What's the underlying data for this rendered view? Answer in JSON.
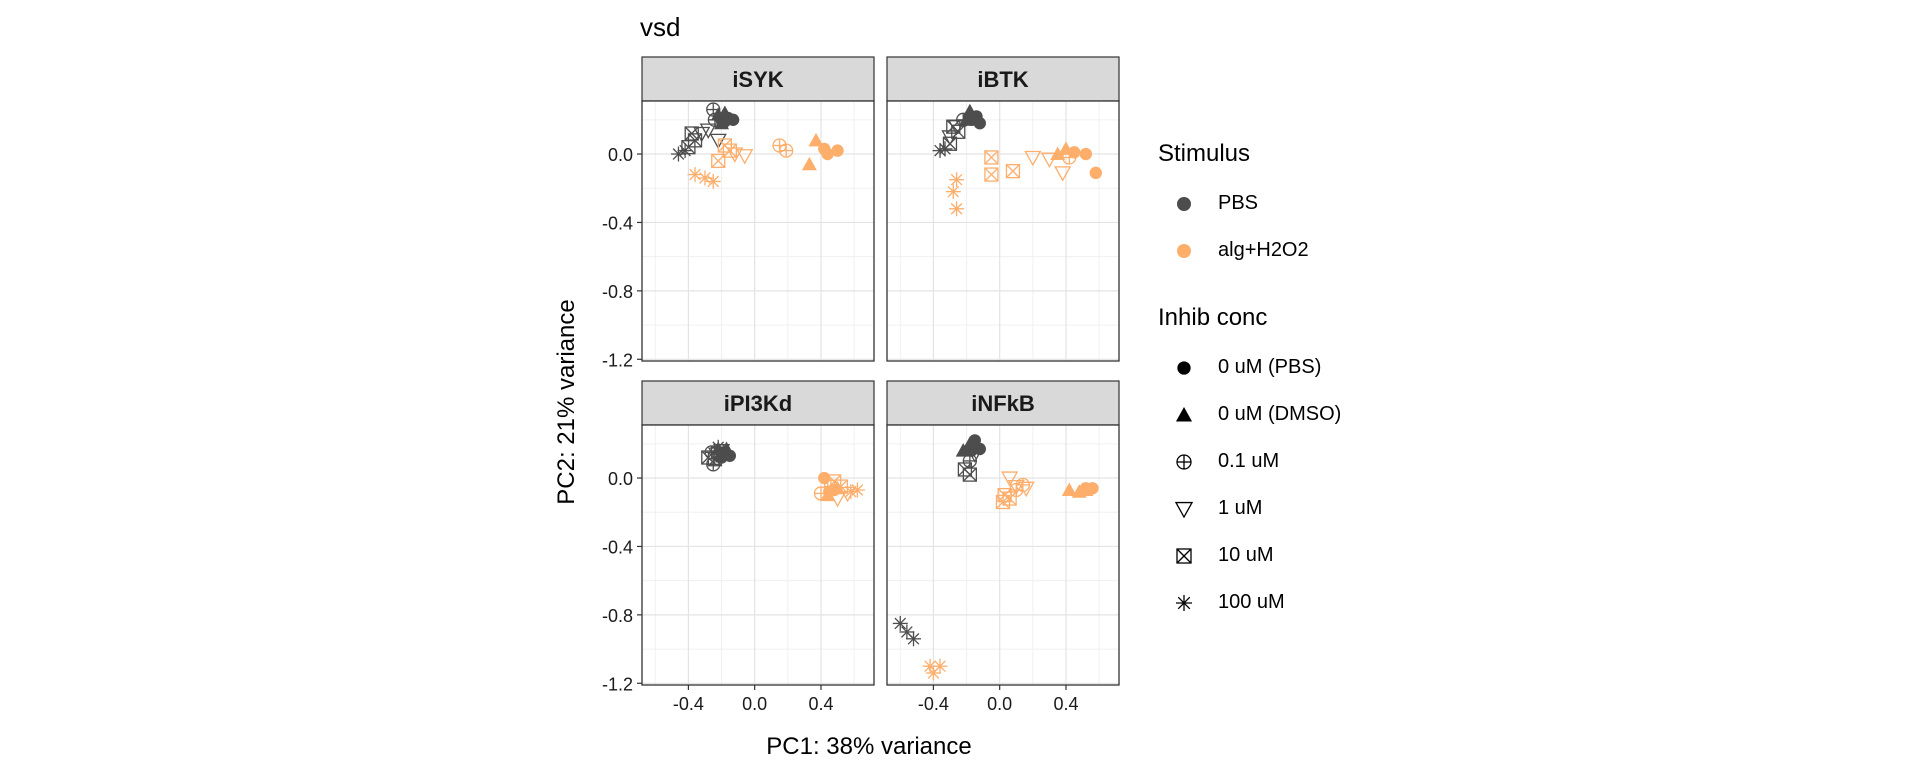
{
  "chart_data": {
    "type": "scatter",
    "title": "vsd",
    "xlabel": "PC1: 38% variance",
    "ylabel": "PC2: 21% variance",
    "xlim": [
      -0.68,
      0.72
    ],
    "ylim": [
      -1.21,
      0.31
    ],
    "x_ticks": [
      -0.4,
      0.0,
      0.4
    ],
    "x_tick_labels": [
      "-0.4",
      "0.0",
      "0.4"
    ],
    "y_ticks": [
      0.0,
      -0.4,
      -0.8,
      -1.2
    ],
    "y_tick_labels": [
      "0.0",
      "-0.4",
      "-0.8",
      "-1.2"
    ],
    "grid": true,
    "facets": [
      "iSYK",
      "iBTK",
      "iPI3Kd",
      "iNFkB"
    ],
    "legend": {
      "placement": "right",
      "stimulus": {
        "title": "Stimulus",
        "items": [
          {
            "label": "PBS",
            "color": "#4d4d4d"
          },
          {
            "label": "alg+H2O2",
            "color": "#fdae6b"
          }
        ]
      },
      "conc": {
        "title": "Inhib conc",
        "items": [
          {
            "label": "0 uM (PBS)",
            "shape": "circle"
          },
          {
            "label": "0 uM (DMSO)",
            "shape": "triangle"
          },
          {
            "label": "0.1 uM",
            "shape": "circleplus"
          },
          {
            "label": "1 uM",
            "shape": "triangle-down"
          },
          {
            "label": "10 uM",
            "shape": "squarex"
          },
          {
            "label": "100 uM",
            "shape": "asterisk"
          }
        ]
      }
    },
    "panels": [
      {
        "facet": "iSYK",
        "points": [
          [
            -0.2,
            0.2,
            "PBS",
            "circle"
          ],
          [
            -0.16,
            0.21,
            "PBS",
            "circle"
          ],
          [
            -0.13,
            0.2,
            "PBS",
            "circle"
          ],
          [
            -0.18,
            0.19,
            "PBS",
            "circle"
          ],
          [
            -0.22,
            0.23,
            "PBS",
            "triangle"
          ],
          [
            -0.18,
            0.24,
            "PBS",
            "triangle"
          ],
          [
            -0.2,
            0.18,
            "PBS",
            "triangle"
          ],
          [
            -0.25,
            0.26,
            "PBS",
            "circleplus"
          ],
          [
            -0.24,
            0.2,
            "PBS",
            "circleplus"
          ],
          [
            -0.32,
            0.12,
            "PBS",
            "triangle-down"
          ],
          [
            -0.28,
            0.14,
            "PBS",
            "triangle-down"
          ],
          [
            -0.22,
            0.08,
            "PBS",
            "triangle-down"
          ],
          [
            -0.38,
            0.12,
            "PBS",
            "squarex"
          ],
          [
            -0.36,
            0.08,
            "PBS",
            "squarex"
          ],
          [
            -0.4,
            0.04,
            "PBS",
            "squarex"
          ],
          [
            -0.46,
            0.0,
            "PBS",
            "asterisk"
          ],
          [
            -0.42,
            0.02,
            "PBS",
            "asterisk"
          ],
          [
            0.5,
            0.02,
            "alg+H2O2",
            "circle"
          ],
          [
            0.42,
            0.03,
            "alg+H2O2",
            "circle"
          ],
          [
            0.44,
            0.0,
            "alg+H2O2",
            "circle"
          ],
          [
            0.37,
            0.08,
            "alg+H2O2",
            "triangle"
          ],
          [
            0.33,
            -0.06,
            "alg+H2O2",
            "triangle"
          ],
          [
            0.15,
            0.05,
            "alg+H2O2",
            "circleplus"
          ],
          [
            0.19,
            0.02,
            "alg+H2O2",
            "circleplus"
          ],
          [
            -0.12,
            0.0,
            "alg+H2O2",
            "triangle-down"
          ],
          [
            -0.06,
            -0.01,
            "alg+H2O2",
            "triangle-down"
          ],
          [
            -0.18,
            0.05,
            "alg+H2O2",
            "squarex"
          ],
          [
            -0.22,
            -0.04,
            "alg+H2O2",
            "squarex"
          ],
          [
            -0.15,
            0.02,
            "alg+H2O2",
            "squarex"
          ],
          [
            -0.36,
            -0.12,
            "alg+H2O2",
            "asterisk"
          ],
          [
            -0.3,
            -0.14,
            "alg+H2O2",
            "asterisk"
          ],
          [
            -0.25,
            -0.16,
            "alg+H2O2",
            "asterisk"
          ]
        ]
      },
      {
        "facet": "iBTK",
        "points": [
          [
            -0.17,
            0.2,
            "PBS",
            "circle"
          ],
          [
            -0.12,
            0.18,
            "PBS",
            "circle"
          ],
          [
            -0.14,
            0.22,
            "PBS",
            "circle"
          ],
          [
            -0.18,
            0.25,
            "PBS",
            "triangle"
          ],
          [
            -0.2,
            0.2,
            "PBS",
            "triangle"
          ],
          [
            -0.22,
            0.2,
            "PBS",
            "circleplus"
          ],
          [
            -0.26,
            0.16,
            "PBS",
            "triangle-down"
          ],
          [
            -0.3,
            0.1,
            "PBS",
            "triangle-down"
          ],
          [
            -0.28,
            0.16,
            "PBS",
            "squarex"
          ],
          [
            -0.25,
            0.13,
            "PBS",
            "squarex"
          ],
          [
            -0.3,
            0.06,
            "PBS",
            "squarex"
          ],
          [
            -0.36,
            0.02,
            "PBS",
            "asterisk"
          ],
          [
            -0.33,
            0.03,
            "PBS",
            "asterisk"
          ],
          [
            0.45,
            0.01,
            "alg+H2O2",
            "circle"
          ],
          [
            0.52,
            0.0,
            "alg+H2O2",
            "circle"
          ],
          [
            0.58,
            -0.11,
            "alg+H2O2",
            "circle"
          ],
          [
            0.4,
            0.03,
            "alg+H2O2",
            "triangle"
          ],
          [
            0.35,
            0.0,
            "alg+H2O2",
            "triangle"
          ],
          [
            0.42,
            -0.02,
            "alg+H2O2",
            "circleplus"
          ],
          [
            0.2,
            -0.02,
            "alg+H2O2",
            "triangle-down"
          ],
          [
            0.38,
            -0.11,
            "alg+H2O2",
            "triangle-down"
          ],
          [
            0.3,
            -0.03,
            "alg+H2O2",
            "triangle-down"
          ],
          [
            -0.05,
            -0.02,
            "alg+H2O2",
            "squarex"
          ],
          [
            -0.05,
            -0.12,
            "alg+H2O2",
            "squarex"
          ],
          [
            0.08,
            -0.1,
            "alg+H2O2",
            "squarex"
          ],
          [
            -0.26,
            -0.15,
            "alg+H2O2",
            "asterisk"
          ],
          [
            -0.28,
            -0.22,
            "alg+H2O2",
            "asterisk"
          ],
          [
            -0.26,
            -0.32,
            "alg+H2O2",
            "asterisk"
          ]
        ]
      },
      {
        "facet": "iPI3Kd",
        "points": [
          [
            -0.18,
            0.14,
            "PBS",
            "circle"
          ],
          [
            -0.15,
            0.13,
            "PBS",
            "circle"
          ],
          [
            -0.2,
            0.12,
            "PBS",
            "circle"
          ],
          [
            -0.22,
            0.17,
            "PBS",
            "triangle"
          ],
          [
            -0.17,
            0.17,
            "PBS",
            "triangle"
          ],
          [
            -0.25,
            0.08,
            "PBS",
            "circleplus"
          ],
          [
            -0.26,
            0.15,
            "PBS",
            "circleplus"
          ],
          [
            -0.23,
            0.14,
            "PBS",
            "triangle-down"
          ],
          [
            -0.2,
            0.16,
            "PBS",
            "triangle-down"
          ],
          [
            -0.28,
            0.12,
            "PBS",
            "squarex"
          ],
          [
            -0.24,
            0.11,
            "PBS",
            "squarex"
          ],
          [
            -0.22,
            0.18,
            "PBS",
            "asterisk"
          ],
          [
            -0.19,
            0.15,
            "PBS",
            "asterisk"
          ],
          [
            0.42,
            0.0,
            "alg+H2O2",
            "circle"
          ],
          [
            0.48,
            -0.07,
            "alg+H2O2",
            "circle"
          ],
          [
            0.45,
            -0.08,
            "alg+H2O2",
            "circle"
          ],
          [
            0.5,
            -0.06,
            "alg+H2O2",
            "triangle"
          ],
          [
            0.44,
            -0.1,
            "alg+H2O2",
            "triangle"
          ],
          [
            0.4,
            -0.09,
            "alg+H2O2",
            "circleplus"
          ],
          [
            0.46,
            -0.05,
            "alg+H2O2",
            "circleplus"
          ],
          [
            0.5,
            -0.12,
            "alg+H2O2",
            "triangle-down"
          ],
          [
            0.56,
            -0.09,
            "alg+H2O2",
            "triangle-down"
          ],
          [
            0.48,
            -0.02,
            "alg+H2O2",
            "squarex"
          ],
          [
            0.52,
            -0.05,
            "alg+H2O2",
            "squarex"
          ],
          [
            0.58,
            -0.08,
            "alg+H2O2",
            "asterisk"
          ],
          [
            0.62,
            -0.07,
            "alg+H2O2",
            "asterisk"
          ]
        ]
      },
      {
        "facet": "iNFkB",
        "points": [
          [
            -0.15,
            0.22,
            "PBS",
            "circle"
          ],
          [
            -0.12,
            0.17,
            "PBS",
            "circle"
          ],
          [
            -0.17,
            0.16,
            "PBS",
            "circle"
          ],
          [
            -0.22,
            0.16,
            "PBS",
            "triangle"
          ],
          [
            -0.18,
            0.2,
            "PBS",
            "triangle"
          ],
          [
            -0.18,
            0.1,
            "PBS",
            "circleplus"
          ],
          [
            -0.15,
            0.14,
            "PBS",
            "triangle-down"
          ],
          [
            -0.21,
            0.05,
            "PBS",
            "squarex"
          ],
          [
            -0.18,
            0.02,
            "PBS",
            "squarex"
          ],
          [
            -0.6,
            -0.85,
            "PBS",
            "asterisk"
          ],
          [
            -0.56,
            -0.9,
            "PBS",
            "asterisk"
          ],
          [
            -0.52,
            -0.94,
            "PBS",
            "asterisk"
          ],
          [
            0.52,
            -0.06,
            "alg+H2O2",
            "circle"
          ],
          [
            0.56,
            -0.06,
            "alg+H2O2",
            "circle"
          ],
          [
            0.42,
            -0.07,
            "alg+H2O2",
            "triangle"
          ],
          [
            0.48,
            -0.08,
            "alg+H2O2",
            "triangle"
          ],
          [
            0.52,
            -0.07,
            "alg+H2O2",
            "triangle"
          ],
          [
            0.1,
            -0.07,
            "alg+H2O2",
            "circleplus"
          ],
          [
            0.14,
            -0.04,
            "alg+H2O2",
            "circleplus"
          ],
          [
            0.06,
            0.0,
            "alg+H2O2",
            "triangle-down"
          ],
          [
            0.16,
            -0.06,
            "alg+H2O2",
            "triangle-down"
          ],
          [
            0.1,
            -0.05,
            "alg+H2O2",
            "triangle-down"
          ],
          [
            0.02,
            -0.14,
            "alg+H2O2",
            "squarex"
          ],
          [
            0.03,
            -0.1,
            "alg+H2O2",
            "squarex"
          ],
          [
            0.06,
            -0.12,
            "alg+H2O2",
            "squarex"
          ],
          [
            -0.42,
            -1.1,
            "alg+H2O2",
            "asterisk"
          ],
          [
            -0.36,
            -1.1,
            "alg+H2O2",
            "asterisk"
          ],
          [
            -0.4,
            -1.14,
            "alg+H2O2",
            "asterisk"
          ]
        ]
      }
    ]
  }
}
